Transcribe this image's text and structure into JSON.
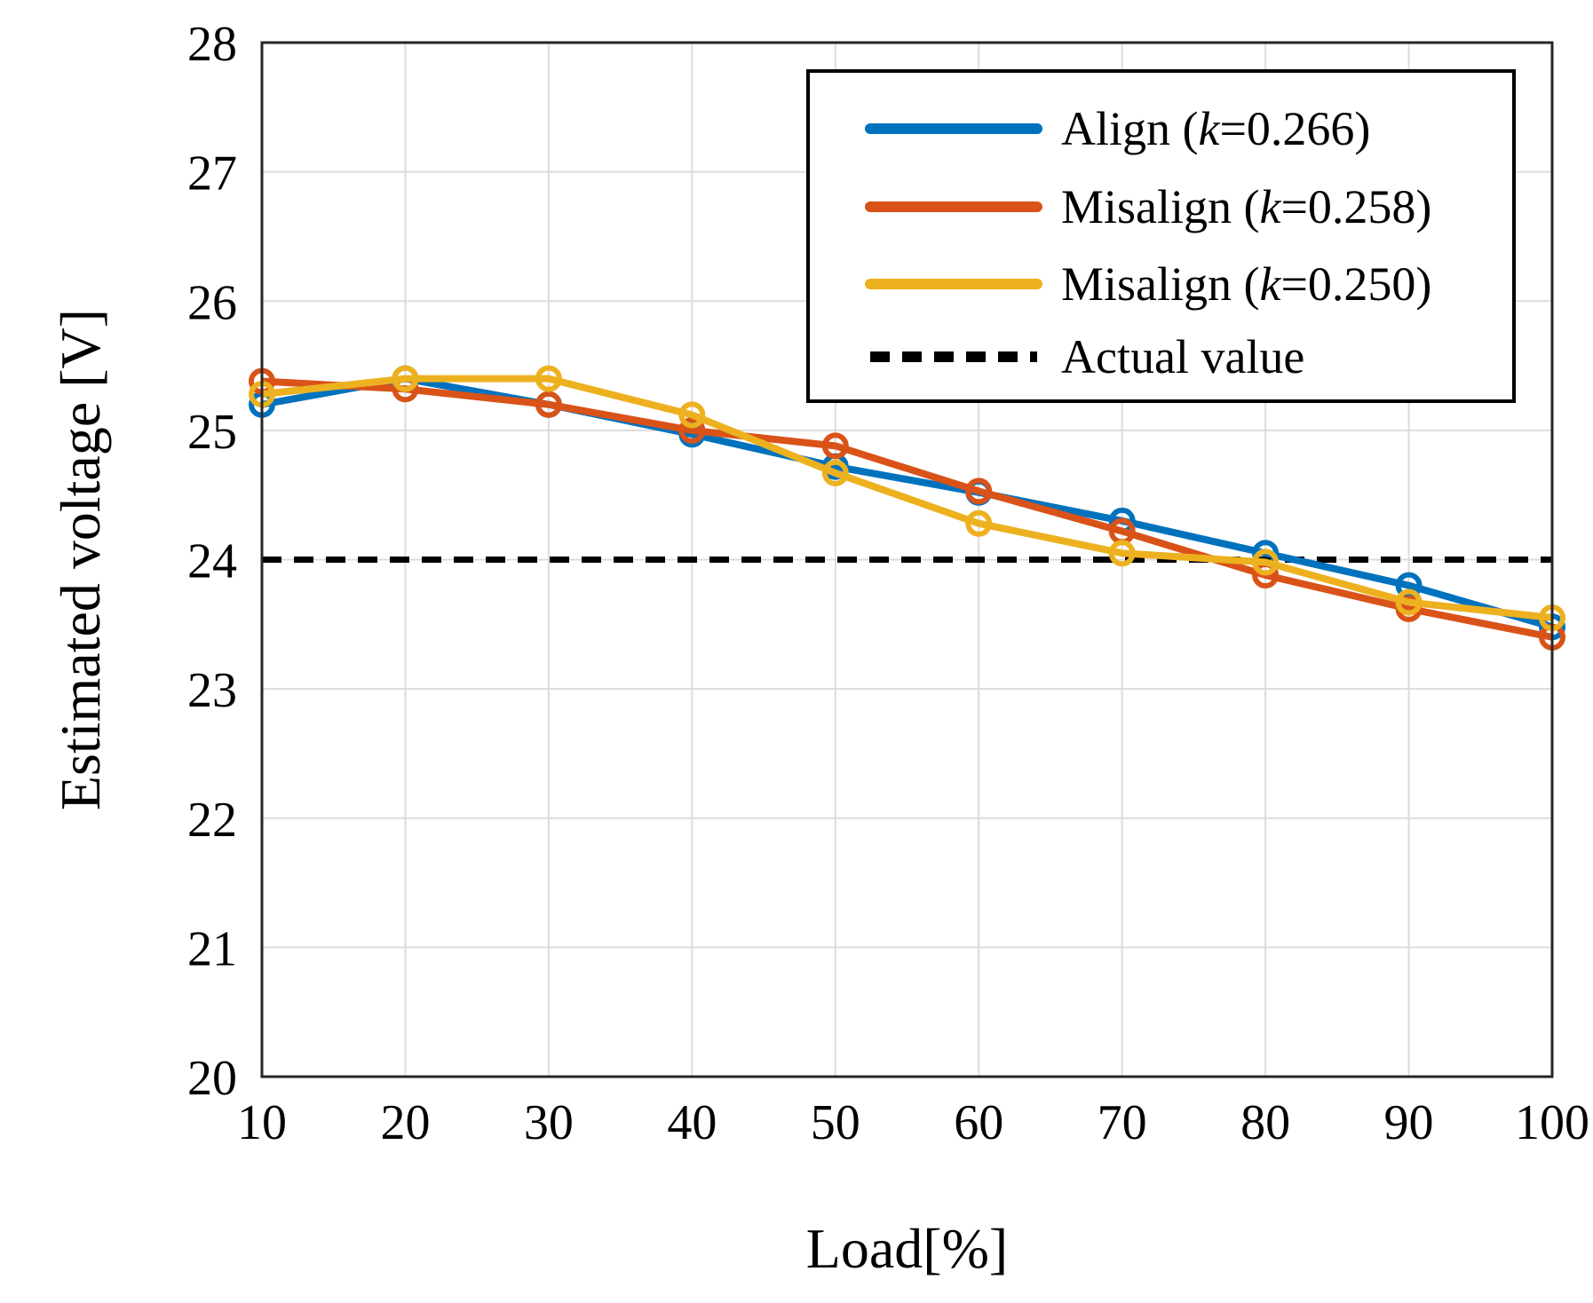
{
  "chart_data": {
    "type": "line",
    "title": "",
    "xlabel": "Load[%]",
    "ylabel": "Estimated voltage [V]",
    "x": [
      10,
      20,
      30,
      40,
      50,
      60,
      70,
      80,
      90,
      100
    ],
    "xlim": [
      10,
      100
    ],
    "ylim": [
      20,
      28
    ],
    "xticks": [
      "10",
      "20",
      "30",
      "40",
      "50",
      "60",
      "70",
      "80",
      "90",
      "100"
    ],
    "yticks": [
      "20",
      "21",
      "22",
      "23",
      "24",
      "25",
      "26",
      "27",
      "28"
    ],
    "grid": true,
    "legend_position": "top-right",
    "series": [
      {
        "name": "Align (k=0.266)",
        "label_prefix": "Align (",
        "label_k": "k",
        "label_suffix": "=0.266)",
        "color": "#0072BD",
        "marker": "circle",
        "values": [
          25.2,
          25.4,
          25.2,
          24.97,
          24.72,
          24.52,
          24.3,
          24.05,
          23.8,
          23.48
        ]
      },
      {
        "name": "Misalign (k=0.258)",
        "label_prefix": "Misalign (",
        "label_k": "k",
        "label_suffix": "=0.258)",
        "color": "#D95319",
        "marker": "circle",
        "values": [
          25.38,
          25.32,
          25.2,
          25.0,
          24.88,
          24.53,
          24.22,
          23.88,
          23.62,
          23.4
        ]
      },
      {
        "name": "Misalign (k=0.250)",
        "label_prefix": "Misalign (",
        "label_k": "k",
        "label_suffix": "=0.250)",
        "color": "#EDB120",
        "marker": "circle",
        "values": [
          25.28,
          25.4,
          25.4,
          25.12,
          24.67,
          24.28,
          24.05,
          23.98,
          23.67,
          23.55
        ]
      }
    ],
    "reference": {
      "name": "Actual value",
      "value": 24,
      "color": "#000000",
      "style": "dashed"
    }
  }
}
